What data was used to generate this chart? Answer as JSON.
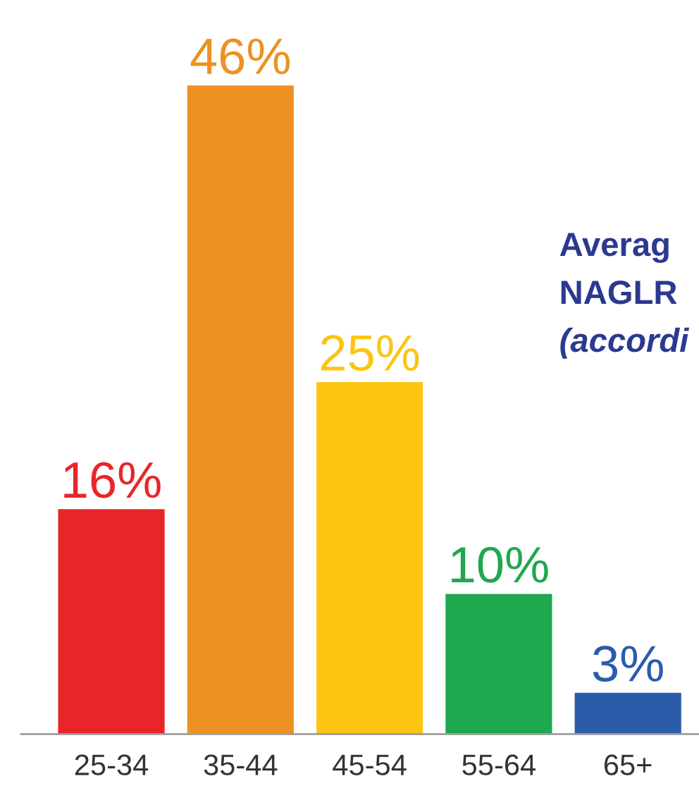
{
  "chart_data": {
    "type": "bar",
    "categories": [
      "25-34",
      "35-44",
      "45-54",
      "55-64",
      "65+"
    ],
    "values": [
      16,
      46,
      25,
      10,
      3
    ],
    "colors": [
      "#e8262a",
      "#ed9122",
      "#fcc512",
      "#1fa84f",
      "#2a5caa"
    ],
    "value_labels": [
      "16%",
      "46%",
      "25%",
      "10%",
      "3%"
    ],
    "annotations": [
      "Averag",
      "NAGLR",
      "(accordi"
    ],
    "grid": false,
    "legend": false
  }
}
